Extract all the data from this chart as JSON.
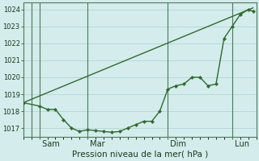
{
  "title": "Pression niveau de la mer( hPa )",
  "background_color": "#d4ecec",
  "grid_color": "#b8d8d8",
  "line_color": "#2d6b2d",
  "vline_color": "#4a7a5a",
  "yticks": [
    1017,
    1018,
    1019,
    1020,
    1021,
    1022,
    1023,
    1024
  ],
  "xtick_labels": [
    " Sam",
    " Mar",
    " Dim",
    " Lun"
  ],
  "xtick_positions": [
    1,
    4,
    9,
    13
  ],
  "vline_positions": [
    0.5,
    1,
    4,
    9,
    13
  ],
  "jagged_x": [
    0,
    1.0,
    1.5,
    2.0,
    2.5,
    3.0,
    3.5,
    4.0,
    4.5,
    5.0,
    5.5,
    6.0,
    6.5,
    7.0,
    7.5,
    8.0,
    8.5,
    9.0,
    9.5,
    10.0,
    10.5,
    11.0,
    11.5,
    12.0,
    12.5,
    13.0,
    13.5,
    14.0,
    14.3
  ],
  "jagged_y": [
    1018.5,
    1018.3,
    1018.1,
    1018.1,
    1017.5,
    1017.0,
    1016.8,
    1016.9,
    1016.85,
    1016.8,
    1016.75,
    1016.8,
    1017.0,
    1017.2,
    1017.4,
    1017.4,
    1018.0,
    1019.3,
    1019.5,
    1019.6,
    1020.0,
    1020.0,
    1019.5,
    1019.6,
    1022.3,
    1023.0,
    1023.7,
    1024.0,
    1023.9
  ],
  "trend_x": [
    0,
    14.3
  ],
  "trend_y": [
    1018.5,
    1024.1
  ],
  "x_min": 0,
  "x_max": 14.5,
  "y_min": 1016.5,
  "y_max": 1024.4,
  "ylabel_fontsize": 6.0,
  "xlabel_fontsize": 7.5,
  "xtick_fontsize": 7.0
}
